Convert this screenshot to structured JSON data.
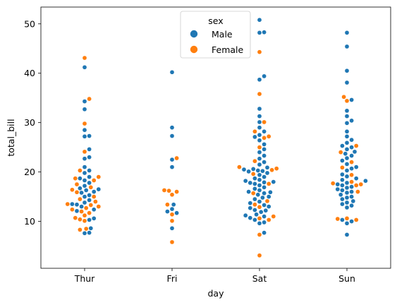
{
  "chart_data": {
    "type": "scatter",
    "subtype": "swarm",
    "xlabel": "day",
    "ylabel": "total_bill",
    "categories": [
      "Thur",
      "Fri",
      "Sat",
      "Sun"
    ],
    "yticks": [
      10,
      20,
      30,
      40,
      50
    ],
    "ylim": [
      0.5,
      53.4
    ],
    "grid": false,
    "legend": {
      "title": "sex",
      "placement": "top-center",
      "entries": [
        {
          "label": "Male",
          "color": "#1f77b4"
        },
        {
          "label": "Female",
          "color": "#ff7f0e"
        }
      ]
    },
    "series": [
      {
        "name": "Male",
        "color": "#1f77b4",
        "values": {
          "Thur": [
            7.6,
            7.7,
            8.6,
            10.3,
            10.6,
            12.1,
            12.4,
            13.0,
            13.4,
            13.5,
            13.8,
            14.3,
            15.0,
            15.3,
            15.8,
            16.0,
            16.3,
            16.5,
            16.7,
            17.2,
            17.8,
            18.3,
            18.7,
            19.0,
            19.8,
            20.3,
            21.0,
            22.7,
            23.0,
            24.6,
            27.2,
            27.3,
            28.5,
            32.7,
            34.3,
            41.2
          ],
          "Fri": [
            8.6,
            11.7,
            12.0,
            12.5,
            13.4,
            21.0,
            22.5,
            27.3,
            29.0,
            40.2
          ],
          "Sat": [
            7.7,
            9.6,
            9.8,
            10.3,
            10.7,
            11.0,
            11.2,
            11.4,
            11.9,
            12.2,
            12.3,
            12.7,
            13.0,
            13.3,
            13.7,
            14.0,
            14.5,
            14.8,
            15.0,
            15.4,
            15.7,
            15.9,
            16.0,
            16.3,
            16.6,
            16.9,
            17.3,
            17.6,
            17.8,
            17.9,
            18.0,
            18.2,
            18.4,
            18.7,
            19.0,
            19.4,
            19.8,
            20.1,
            20.2,
            20.3,
            20.5,
            20.6,
            20.9,
            21.5,
            22.0,
            22.7,
            23.3,
            24.0,
            24.6,
            25.6,
            26.4,
            27.1,
            27.5,
            28.2,
            29.0,
            30.1,
            31.3,
            32.8,
            38.7,
            39.4,
            48.2,
            48.3,
            50.8
          ],
          "Sun": [
            7.3,
            9.6,
            10.0,
            10.3,
            12.8,
            13.2,
            13.5,
            13.8,
            14.1,
            14.5,
            14.8,
            15.0,
            15.4,
            15.8,
            16.0,
            16.3,
            16.5,
            16.8,
            17.0,
            17.3,
            17.5,
            17.8,
            18.2,
            18.4,
            18.7,
            19.1,
            19.5,
            20.3,
            20.7,
            21.0,
            21.6,
            22.3,
            22.8,
            23.3,
            23.7,
            24.1,
            24.6,
            25.0,
            25.3,
            25.9,
            26.5,
            27.2,
            28.2,
            29.9,
            30.4,
            31.3,
            32.4,
            34.6,
            38.1,
            40.5,
            45.4,
            48.2
          ]
        }
      },
      {
        "name": "Female",
        "color": "#ff7f0e",
        "values": {
          "Thur": [
            8.3,
            8.5,
            10.1,
            10.4,
            10.7,
            11.2,
            11.7,
            12.0,
            12.4,
            12.7,
            13.0,
            13.3,
            13.5,
            14.0,
            14.5,
            15.0,
            15.9,
            16.4,
            16.9,
            17.5,
            18.3,
            18.7,
            19.0,
            20.3,
            24.1,
            29.8,
            34.8,
            43.1
          ],
          "Fri": [
            5.8,
            10.1,
            11.4,
            13.4,
            15.4,
            16.0,
            16.2,
            16.3,
            22.8
          ],
          "Sat": [
            3.1,
            7.3,
            10.3,
            10.6,
            11.0,
            12.9,
            13.4,
            14.1,
            15.7,
            17.6,
            19.6,
            20.4,
            20.7,
            21.0,
            22.2,
            25.0,
            26.9,
            27.2,
            28.2,
            30.1,
            35.8,
            44.3
          ],
          "Sun": [
            10.3,
            10.5,
            10.6,
            16.0,
            17.3,
            17.5,
            17.7,
            18.0,
            19.4,
            20.9,
            22.0,
            24.0,
            25.3,
            34.4,
            35.2
          ]
        }
      }
    ]
  }
}
